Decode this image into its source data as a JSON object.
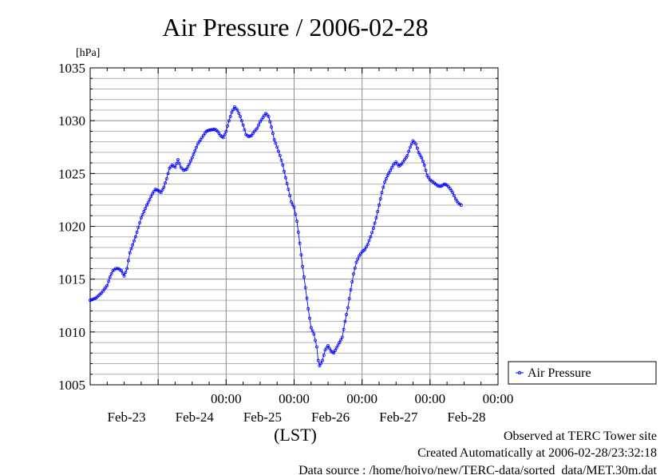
{
  "chart_data": {
    "type": "line",
    "title": "Air Pressure / 2006-02-28",
    "ylabel": "[hPa]",
    "xlabel": "(LST)",
    "ylim": [
      1005,
      1035
    ],
    "yticks": [
      "1005",
      "1010",
      "1015",
      "1020",
      "1025",
      "1030",
      "1035"
    ],
    "x_time_labels": [
      "00:00",
      "00:00",
      "00:00",
      "00:00",
      "00:00"
    ],
    "x_day_labels": [
      "Feb-23",
      "Feb-24",
      "Feb-25",
      "Feb-26",
      "Feb-27",
      "Feb-28"
    ],
    "x_unit": "hours since 2006-02-22 00:00 LST",
    "xlim": [
      0,
      144
    ],
    "grid": true,
    "legend_position": "right",
    "series": [
      {
        "name": "Air Pressure",
        "color": "#0000ff",
        "points": [
          [
            0,
            1013.0
          ],
          [
            2,
            1013.2
          ],
          [
            4,
            1013.7
          ],
          [
            6,
            1014.4
          ],
          [
            7,
            1015.2
          ],
          [
            8,
            1015.8
          ],
          [
            9,
            1016.0
          ],
          [
            10,
            1016.0
          ],
          [
            11,
            1015.8
          ],
          [
            12,
            1015.3
          ],
          [
            13,
            1016.0
          ],
          [
            14,
            1017.5
          ],
          [
            16,
            1019.0
          ],
          [
            18,
            1020.8
          ],
          [
            20,
            1022.0
          ],
          [
            22,
            1023.1
          ],
          [
            23,
            1023.5
          ],
          [
            24,
            1023.4
          ],
          [
            25,
            1023.2
          ],
          [
            26,
            1023.7
          ],
          [
            27,
            1024.5
          ],
          [
            28,
            1025.5
          ],
          [
            29,
            1025.8
          ],
          [
            30,
            1025.6
          ],
          [
            31,
            1026.3
          ],
          [
            32,
            1025.6
          ],
          [
            33,
            1025.3
          ],
          [
            34,
            1025.4
          ],
          [
            35,
            1025.9
          ],
          [
            36,
            1026.5
          ],
          [
            38,
            1027.8
          ],
          [
            40,
            1028.6
          ],
          [
            41,
            1029.0
          ],
          [
            42,
            1029.1
          ],
          [
            44,
            1029.2
          ],
          [
            45,
            1029.0
          ],
          [
            46,
            1028.6
          ],
          [
            47,
            1028.4
          ],
          [
            48,
            1029.0
          ],
          [
            49,
            1030.0
          ],
          [
            50,
            1030.8
          ],
          [
            51,
            1031.3
          ],
          [
            52,
            1031.0
          ],
          [
            53,
            1030.4
          ],
          [
            54,
            1029.6
          ],
          [
            55,
            1028.7
          ],
          [
            56,
            1028.5
          ],
          [
            57,
            1028.6
          ],
          [
            58,
            1029.0
          ],
          [
            59,
            1029.3
          ],
          [
            60,
            1029.9
          ],
          [
            61,
            1030.3
          ],
          [
            62,
            1030.7
          ],
          [
            63,
            1030.4
          ],
          [
            64,
            1029.4
          ],
          [
            65,
            1028.2
          ],
          [
            66,
            1027.5
          ],
          [
            67,
            1026.7
          ],
          [
            68,
            1025.8
          ],
          [
            69,
            1024.6
          ],
          [
            70,
            1023.5
          ],
          [
            71,
            1022.3
          ],
          [
            72,
            1021.8
          ],
          [
            73,
            1020.5
          ],
          [
            74,
            1018.4
          ],
          [
            75,
            1016.2
          ],
          [
            76,
            1014.2
          ],
          [
            77,
            1012.2
          ],
          [
            78,
            1010.4
          ],
          [
            79,
            1009.8
          ],
          [
            80,
            1008.6
          ],
          [
            80.5,
            1007.3
          ],
          [
            81,
            1006.8
          ],
          [
            82,
            1007.3
          ],
          [
            83,
            1008.3
          ],
          [
            84,
            1008.7
          ],
          [
            85,
            1008.2
          ],
          [
            86,
            1008.0
          ],
          [
            87,
            1008.5
          ],
          [
            88,
            1009.0
          ],
          [
            89,
            1009.5
          ],
          [
            90,
            1011.0
          ],
          [
            91,
            1012.3
          ],
          [
            92,
            1014.0
          ],
          [
            93,
            1015.5
          ],
          [
            94,
            1016.6
          ],
          [
            95,
            1017.2
          ],
          [
            96,
            1017.6
          ],
          [
            97,
            1017.8
          ],
          [
            98,
            1018.3
          ],
          [
            99,
            1019.0
          ],
          [
            100,
            1019.8
          ],
          [
            101,
            1020.8
          ],
          [
            102,
            1022.0
          ],
          [
            103,
            1023.2
          ],
          [
            104,
            1024.2
          ],
          [
            105,
            1024.8
          ],
          [
            106,
            1025.3
          ],
          [
            107,
            1025.8
          ],
          [
            108,
            1026.1
          ],
          [
            109,
            1025.7
          ],
          [
            110,
            1025.9
          ],
          [
            111,
            1026.3
          ],
          [
            112,
            1026.7
          ],
          [
            113,
            1027.5
          ],
          [
            114,
            1028.1
          ],
          [
            115,
            1027.8
          ],
          [
            116,
            1027.0
          ],
          [
            117,
            1026.5
          ],
          [
            118,
            1025.8
          ],
          [
            119,
            1024.8
          ],
          [
            120,
            1024.4
          ],
          [
            121,
            1024.2
          ],
          [
            122,
            1024.0
          ],
          [
            123,
            1023.8
          ],
          [
            124,
            1023.8
          ],
          [
            125,
            1024.0
          ],
          [
            126,
            1023.9
          ],
          [
            127,
            1023.6
          ],
          [
            128,
            1023.2
          ],
          [
            129,
            1022.6
          ],
          [
            130,
            1022.2
          ],
          [
            131,
            1022.0
          ]
        ]
      }
    ]
  },
  "footer": {
    "line1": "Observed at TERC Tower site",
    "line2": "Created Automatically at 2006-02-28/23:32:18",
    "line3": "Data source : /home/hoivo/new/TERC-data/sorted  data/MET.30m.dat"
  }
}
